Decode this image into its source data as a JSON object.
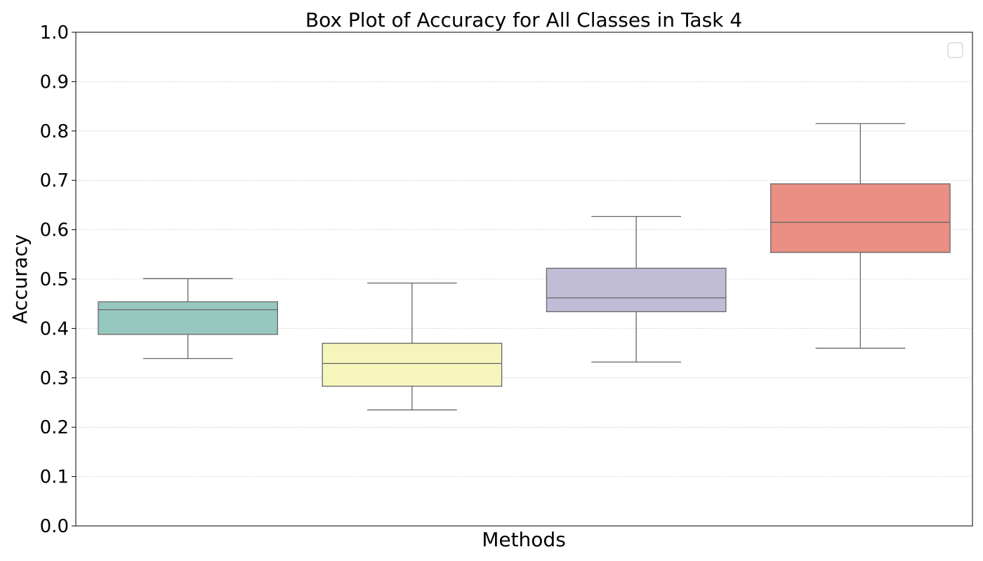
{
  "chart_data": {
    "type": "box",
    "title": "Box Plot of Accuracy for All Classes in Task 4",
    "xlabel": "Methods",
    "ylabel": "Accuracy",
    "ylim": [
      0.0,
      1.0
    ],
    "yticks": [
      "0.0",
      "0.1",
      "0.2",
      "0.3",
      "0.4",
      "0.5",
      "0.6",
      "0.7",
      "0.8",
      "0.9",
      "1.0"
    ],
    "grid": "y-dotted",
    "legend": "top-right",
    "legend_entries": [],
    "boxes": [
      {
        "whisker_low": 0.339,
        "q1": 0.388,
        "median": 0.438,
        "q3": 0.454,
        "whisker_high": 0.501,
        "color": "#97c8bf"
      },
      {
        "whisker_low": 0.235,
        "q1": 0.283,
        "median": 0.329,
        "q3": 0.37,
        "whisker_high": 0.492,
        "color": "#f6f5bc"
      },
      {
        "whisker_low": 0.332,
        "q1": 0.434,
        "median": 0.462,
        "q3": 0.522,
        "whisker_high": 0.627,
        "color": "#c1bdd6"
      },
      {
        "whisker_low": 0.36,
        "q1": 0.554,
        "median": 0.615,
        "q3": 0.693,
        "whisker_high": 0.815,
        "color": "#ea8f83"
      }
    ]
  }
}
